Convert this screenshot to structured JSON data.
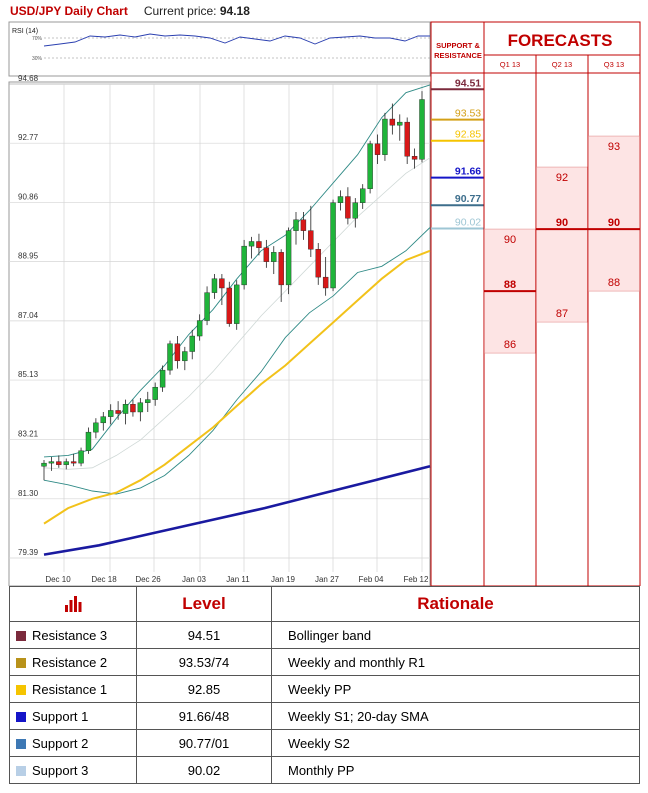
{
  "header": {
    "pair": "USD/JPY Daily Chart",
    "price_label": "Current price:",
    "price_value": "94.18"
  },
  "rsi": {
    "label": "RSI (14)",
    "levels": [
      "70%",
      "30%"
    ]
  },
  "colors": {
    "r3": "#7b2a3c",
    "r2": "#d4a017",
    "r1": "#f5c400",
    "s1": "#1515c8",
    "s2": "#3d6e8c",
    "s3": "#9ec6d4",
    "red": "#c00000",
    "sma_long": "#1a1aa0",
    "sma_mid": "#f2c21a",
    "bb": "#2f8a86"
  },
  "chart_data": [
    {
      "type": "candlestick",
      "title": "USD/JPY Daily Chart",
      "y_ticks": [
        94.68,
        92.77,
        90.86,
        88.95,
        87.04,
        85.13,
        83.21,
        81.3,
        79.39
      ],
      "ylim": [
        79.39,
        94.68
      ],
      "x_ticks": [
        "Dec 10",
        "Dec 18",
        "Dec 26",
        "Jan 03",
        "Jan 11",
        "Jan 19",
        "Jan 27",
        "Feb 04",
        "Feb 12"
      ],
      "candles": [
        [
          82.35,
          82.55,
          81.9,
          82.45
        ],
        [
          82.45,
          82.65,
          82.2,
          82.5
        ],
        [
          82.5,
          82.7,
          82.3,
          82.4
        ],
        [
          82.4,
          82.6,
          82.25,
          82.5
        ],
        [
          82.5,
          82.75,
          82.35,
          82.45
        ],
        [
          82.45,
          82.95,
          82.35,
          82.85
        ],
        [
          82.85,
          83.6,
          82.75,
          83.45
        ],
        [
          83.45,
          83.9,
          83.25,
          83.75
        ],
        [
          83.75,
          84.1,
          83.5,
          83.95
        ],
        [
          83.95,
          84.35,
          83.7,
          84.15
        ],
        [
          84.15,
          84.45,
          83.85,
          84.05
        ],
        [
          84.05,
          84.5,
          83.7,
          84.35
        ],
        [
          84.35,
          84.5,
          83.95,
          84.1
        ],
        [
          84.1,
          84.55,
          83.8,
          84.4
        ],
        [
          84.4,
          84.75,
          84.1,
          84.5
        ],
        [
          84.5,
          85.05,
          84.3,
          84.9
        ],
        [
          84.9,
          85.6,
          84.75,
          85.45
        ],
        [
          85.45,
          86.4,
          85.3,
          86.3
        ],
        [
          86.3,
          86.55,
          85.5,
          85.75
        ],
        [
          85.75,
          86.2,
          85.45,
          86.05
        ],
        [
          86.05,
          86.75,
          85.8,
          86.55
        ],
        [
          86.55,
          87.25,
          86.4,
          87.05
        ],
        [
          87.05,
          88.15,
          86.9,
          87.95
        ],
        [
          87.95,
          88.55,
          87.75,
          88.4
        ],
        [
          88.4,
          88.55,
          87.55,
          88.1
        ],
        [
          88.1,
          88.3,
          86.85,
          86.95
        ],
        [
          86.95,
          88.35,
          86.75,
          88.2
        ],
        [
          88.2,
          89.65,
          88.05,
          89.45
        ],
        [
          89.45,
          89.75,
          89.05,
          89.6
        ],
        [
          89.6,
          89.85,
          89.15,
          89.4
        ],
        [
          89.4,
          89.65,
          88.75,
          88.95
        ],
        [
          88.95,
          89.45,
          88.55,
          89.25
        ],
        [
          89.25,
          89.35,
          87.65,
          88.2
        ],
        [
          88.2,
          90.05,
          87.9,
          89.95
        ],
        [
          89.95,
          90.55,
          89.5,
          90.3
        ],
        [
          90.3,
          90.55,
          89.65,
          89.95
        ],
        [
          89.95,
          90.75,
          89.1,
          89.35
        ],
        [
          89.35,
          89.55,
          88.2,
          88.45
        ],
        [
          88.45,
          89.1,
          87.85,
          88.1
        ],
        [
          88.1,
          90.95,
          88.0,
          90.85
        ],
        [
          90.85,
          91.25,
          90.6,
          91.05
        ],
        [
          91.05,
          91.35,
          90.15,
          90.35
        ],
        [
          90.35,
          91.0,
          90.05,
          90.85
        ],
        [
          90.85,
          91.45,
          90.65,
          91.3
        ],
        [
          91.3,
          92.85,
          91.15,
          92.75
        ],
        [
          92.75,
          93.05,
          92.1,
          92.4
        ],
        [
          92.4,
          93.75,
          92.2,
          93.55
        ],
        [
          93.55,
          94.05,
          93.05,
          93.35
        ],
        [
          93.35,
          93.7,
          92.85,
          93.45
        ],
        [
          93.45,
          93.6,
          92.1,
          92.35
        ],
        [
          92.35,
          92.6,
          91.95,
          92.25
        ],
        [
          92.25,
          94.45,
          92.15,
          94.18
        ]
      ],
      "sma_slow": [
        79.5,
        79.8,
        80.2,
        80.6,
        81.0,
        81.45,
        81.9,
        82.35
      ],
      "sma_mid": [
        80.5,
        81.0,
        81.3,
        81.5,
        81.9,
        82.4,
        83.0,
        83.6,
        84.3,
        85.0,
        85.6,
        86.3,
        87.0,
        87.7,
        88.4,
        89.0,
        89.3
      ],
      "bb_upper": [
        82.65,
        82.7,
        82.9,
        83.9,
        84.8,
        85.6,
        86.6,
        87.4,
        88.4,
        89.3,
        89.8,
        90.6,
        91.5,
        92.4,
        93.6,
        94.4,
        94.65
      ],
      "bb_lower": [
        81.9,
        81.75,
        81.55,
        81.45,
        81.65,
        82.05,
        82.7,
        83.5,
        84.5,
        85.4,
        86.5,
        87.3,
        87.85,
        88.6,
        88.8,
        89.3,
        90.05
      ],
      "bb_mid": [
        82.3,
        82.25,
        82.3,
        82.7,
        83.2,
        83.9,
        84.6,
        85.4,
        86.3,
        87.2,
        88.0,
        88.8,
        89.6,
        90.4,
        91.1,
        91.8,
        92.3
      ],
      "levels": [
        {
          "label": "94.51",
          "value": 94.51,
          "color": "r3"
        },
        {
          "label": "93.53",
          "value": 93.53,
          "color": "r2"
        },
        {
          "label": "92.85",
          "value": 92.85,
          "color": "r1"
        },
        {
          "label": "91.66",
          "value": 91.66,
          "color": "s1"
        },
        {
          "label": "90.77",
          "value": 90.77,
          "color": "s2"
        },
        {
          "label": "90.02",
          "value": 90.02,
          "color": "s3"
        }
      ]
    },
    {
      "type": "bar",
      "title": "FORECASTS",
      "categories": [
        "Q1 13",
        "Q2 13",
        "Q3 13"
      ],
      "ranges": [
        {
          "high": 90,
          "mid": 88,
          "low": 86,
          "labels": [
            "90",
            "88",
            "86"
          ]
        },
        {
          "high": 92,
          "mid": 90,
          "low": 87,
          "labels": [
            "92",
            "90",
            "87"
          ]
        },
        {
          "high": 93,
          "mid": 90,
          "low": 88,
          "labels": [
            "93",
            "90",
            "88"
          ]
        }
      ]
    }
  ],
  "sr_header": [
    "SUPPORT &",
    "RESISTANCE"
  ],
  "table": {
    "headers": [
      "Level",
      "Rationale"
    ],
    "rows": [
      {
        "name": "Resistance 3",
        "color": "#7b2a3c",
        "level": "94.51",
        "rationale": "Bollinger band"
      },
      {
        "name": "Resistance 2",
        "color": "#b8921a",
        "level": "93.53/74",
        "rationale": "Weekly and monthly R1"
      },
      {
        "name": "Resistance 1",
        "color": "#f5c400",
        "level": "92.85",
        "rationale": "Weekly PP"
      },
      {
        "name": "Support 1",
        "color": "#1515c8",
        "level": "91.66/48",
        "rationale": "Weekly S1; 20-day SMA"
      },
      {
        "name": "Support 2",
        "color": "#3d78b4",
        "level": "90.77/01",
        "rationale": "Weekly S2"
      },
      {
        "name": "Support 3",
        "color": "#b8cfe6",
        "level": "90.02",
        "rationale": "Monthly PP"
      }
    ]
  }
}
